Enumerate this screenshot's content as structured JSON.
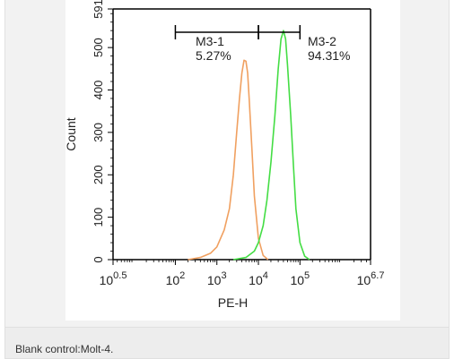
{
  "figure": {
    "caption": "Blank control:Molt-4."
  },
  "chart_data": {
    "type": "line",
    "xlabel": "PE-H",
    "ylabel": "Count",
    "x_scale": "log",
    "xlim": [
      3.162,
      5011872
    ],
    "ylim": [
      0,
      591
    ],
    "x_ticks": [
      {
        "base": "10",
        "exp": "0.5",
        "value": 3.162
      },
      {
        "base": "10",
        "exp": "2",
        "value": 100
      },
      {
        "base": "10",
        "exp": "3",
        "value": 1000
      },
      {
        "base": "10",
        "exp": "4",
        "value": 10000
      },
      {
        "base": "10",
        "exp": "5",
        "value": 100000
      },
      {
        "base": "10",
        "exp": "6.7",
        "value": 5011872
      }
    ],
    "y_ticks": [
      0,
      100,
      200,
      300,
      400,
      500,
      591
    ],
    "series": [
      {
        "color": "#f0a060",
        "x": [
          200,
          400,
          700,
          1000,
          1500,
          2000,
          2500,
          3000,
          3500,
          4000,
          4500,
          5000,
          5500,
          6000,
          7000,
          8000,
          10000,
          13000,
          17000
        ],
        "y": [
          0,
          5,
          15,
          30,
          70,
          120,
          200,
          300,
          380,
          440,
          470,
          468,
          440,
          380,
          260,
          150,
          50,
          10,
          0
        ]
      },
      {
        "color": "#44dd44",
        "x": [
          2500,
          5000,
          8000,
          10000,
          13000,
          16000,
          20000,
          25000,
          30000,
          35000,
          40000,
          45000,
          50000,
          60000,
          70000,
          80000,
          100000,
          130000,
          170000
        ],
        "y": [
          0,
          5,
          20,
          40,
          80,
          140,
          230,
          340,
          450,
          520,
          540,
          520,
          460,
          340,
          220,
          120,
          40,
          8,
          0
        ]
      }
    ],
    "gates": [
      {
        "label": "M3-1",
        "percent": "5.27%",
        "x_start": 100,
        "x_end": 10000
      },
      {
        "label": "M3-2",
        "percent": "94.31%",
        "x_start": 10000,
        "x_end": 100000
      }
    ],
    "grid": false,
    "legend": "none"
  }
}
